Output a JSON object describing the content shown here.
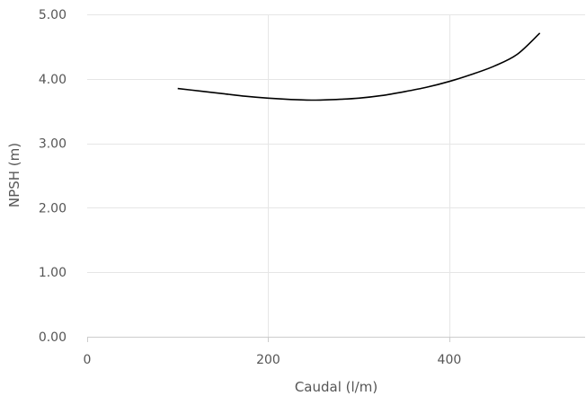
{
  "chart_data": {
    "type": "line",
    "xlabel": "Caudal (l/m)",
    "ylabel": "NPSH (m)",
    "xlim": [
      0,
      550
    ],
    "ylim": [
      0,
      5
    ],
    "xticks": [
      0,
      200,
      400
    ],
    "xtick_labels": [
      "0",
      "200",
      "400"
    ],
    "yticks": [
      0,
      1,
      2,
      3,
      4,
      5
    ],
    "ytick_labels": [
      "0.00",
      "1.00",
      "2.00",
      "3.00",
      "4.00",
      "5.00"
    ],
    "grid": true,
    "colors": {
      "series": "#000000",
      "grid": "#e6e6e6",
      "text": "#555555"
    },
    "series": [
      {
        "x": [
          100,
          125,
          150,
          175,
          200,
          225,
          250,
          275,
          300,
          325,
          350,
          375,
          400,
          425,
          450,
          475,
          500
        ],
        "values": [
          3.85,
          3.81,
          3.77,
          3.73,
          3.7,
          3.68,
          3.67,
          3.68,
          3.7,
          3.74,
          3.8,
          3.87,
          3.96,
          4.07,
          4.2,
          4.38,
          4.71
        ]
      }
    ]
  }
}
